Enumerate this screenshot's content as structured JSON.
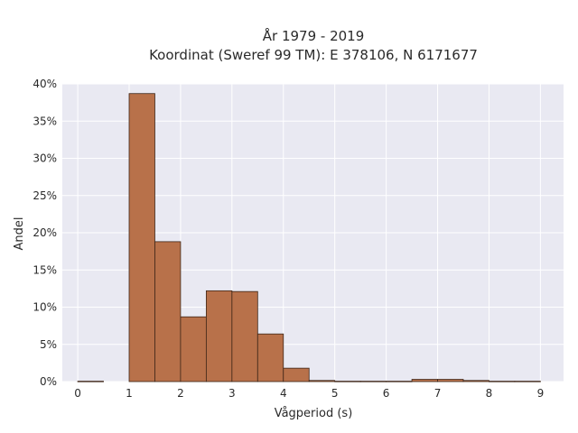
{
  "chart_data": {
    "type": "bar",
    "title_line1": "År 1979 - 2019",
    "title_line2": "Koordinat (Sweref 99 TM): E 378106, N 6171677",
    "xlabel": "Vågperiod (s)",
    "ylabel": "Andel",
    "xlim": [
      -0.3,
      9.45
    ],
    "ylim": [
      0,
      40
    ],
    "x_ticks": [
      0,
      1,
      2,
      3,
      4,
      5,
      6,
      7,
      8,
      9
    ],
    "y_ticks": [
      0,
      5,
      10,
      15,
      20,
      25,
      30,
      35,
      40
    ],
    "y_tick_labels": [
      "0%",
      "5%",
      "10%",
      "15%",
      "20%",
      "25%",
      "30%",
      "35%",
      "40%"
    ],
    "bin_width": 0.5,
    "bins": [
      {
        "x": 0.0,
        "value": 0.05
      },
      {
        "x": 0.5,
        "value": 0.0
      },
      {
        "x": 1.0,
        "value": 38.7
      },
      {
        "x": 1.5,
        "value": 18.8
      },
      {
        "x": 2.0,
        "value": 8.7
      },
      {
        "x": 2.5,
        "value": 12.2
      },
      {
        "x": 3.0,
        "value": 12.1
      },
      {
        "x": 3.5,
        "value": 6.4
      },
      {
        "x": 4.0,
        "value": 1.8
      },
      {
        "x": 4.5,
        "value": 0.15
      },
      {
        "x": 5.0,
        "value": 0.05
      },
      {
        "x": 5.5,
        "value": 0.05
      },
      {
        "x": 6.0,
        "value": 0.05
      },
      {
        "x": 6.5,
        "value": 0.3
      },
      {
        "x": 7.0,
        "value": 0.3
      },
      {
        "x": 7.5,
        "value": 0.15
      },
      {
        "x": 8.0,
        "value": 0.05
      },
      {
        "x": 8.5,
        "value": 0.05
      }
    ],
    "grid": true,
    "colors": {
      "plot_bg": "#e9e9f2",
      "grid": "#ffffff",
      "bar_fill": "#b8714a",
      "bar_stroke": "#3d2517"
    }
  }
}
